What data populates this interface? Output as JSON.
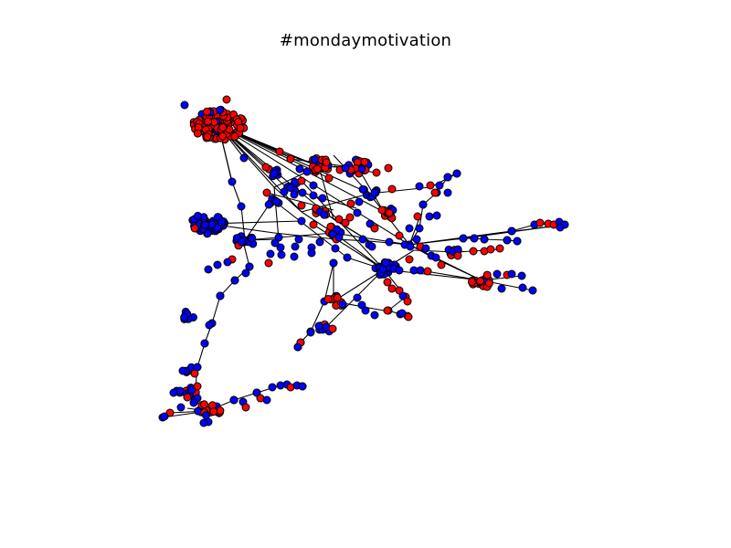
{
  "title": "#mondaymotivation",
  "colors": {
    "node_red": "#ff0000",
    "node_blue": "#0000ff",
    "edge": "#000000",
    "background": "#ffffff"
  }
}
